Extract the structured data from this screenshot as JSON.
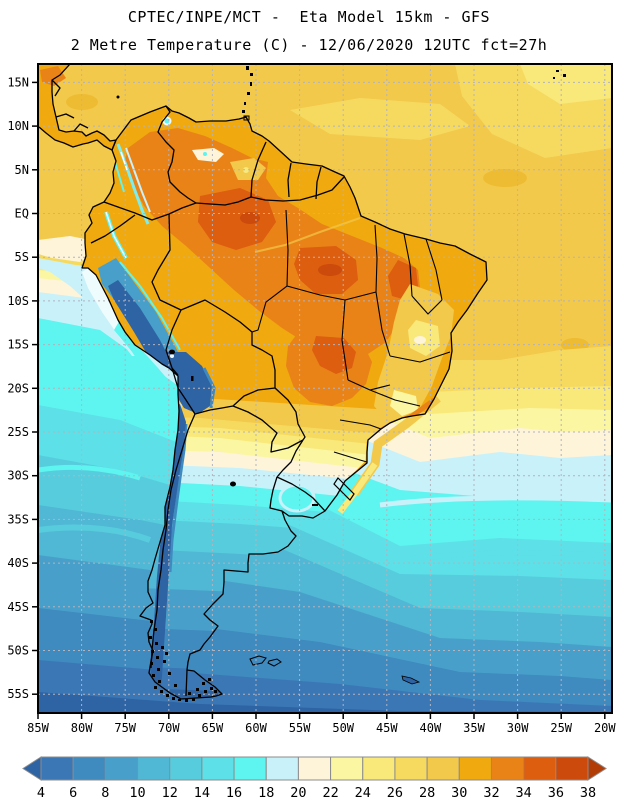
{
  "header": {
    "line1": "CPTEC/INPE/MCT -  Eta Model 15km - GFS",
    "line2": "2 Metre Temperature (C) - 12/06/2020 12UTC fct=27h"
  },
  "map": {
    "lat_tick_labels": [
      "15N",
      "10N",
      "5N",
      "EQ",
      "5S",
      "10S",
      "15S",
      "20S",
      "25S",
      "30S",
      "35S",
      "40S",
      "45S",
      "50S",
      "55S"
    ],
    "lon_tick_labels": [
      "85W",
      "80W",
      "75W",
      "70W",
      "65W",
      "60W",
      "55W",
      "50W",
      "45W",
      "40W",
      "35W",
      "30W",
      "25W",
      "20W"
    ]
  },
  "colorbar": {
    "tick_labels": [
      "4",
      "6",
      "8",
      "10",
      "12",
      "14",
      "16",
      "18",
      "20",
      "22",
      "24",
      "26",
      "28",
      "30",
      "32",
      "34",
      "36",
      "38"
    ],
    "cell_colors": [
      "#3b77b5",
      "#3f8abf",
      "#48a0ca",
      "#50b7d4",
      "#57ccdd",
      "#5de0e7",
      "#5ef4ef",
      "#c9f1fa",
      "#fdf4da",
      "#fbf6a2",
      "#f9e87a",
      "#f6da60",
      "#f2c94a",
      "#f0a90e",
      "#e98318",
      "#dc5e0e",
      "#cb4a0c"
    ],
    "below_min_color": "#2e63a4",
    "above_max_color": "#b23d07"
  },
  "chart_data": {
    "type": "heatmap",
    "title": "CPTEC/INPE/MCT -  Eta Model 15km - GFS",
    "subtitle": "2 Metre Temperature (C) - 12/06/2020 12UTC fct=27h",
    "variable": "2 Metre Temperature",
    "units": "C",
    "model": "Eta Model 15km - GFS",
    "run": "12/06/2020 12UTC",
    "forecast": "fct=27h",
    "x_tick_labels": [
      "85W",
      "80W",
      "75W",
      "70W",
      "65W",
      "60W",
      "55W",
      "50W",
      "45W",
      "40W",
      "35W",
      "30W",
      "25W",
      "20W"
    ],
    "y_tick_labels": [
      "15N",
      "10N",
      "5N",
      "EQ",
      "5S",
      "10S",
      "15S",
      "20S",
      "25S",
      "30S",
      "35S",
      "40S",
      "45S",
      "50S",
      "55S"
    ],
    "colorbar_values": [
      4,
      6,
      8,
      10,
      12,
      14,
      16,
      18,
      20,
      22,
      24,
      26,
      28,
      30,
      32,
      34,
      36,
      38
    ],
    "colorbar_colors": [
      "#2e63a4",
      "#3b77b5",
      "#3f8abf",
      "#48a0ca",
      "#50b7d4",
      "#57ccdd",
      "#5de0e7",
      "#5ef4ef",
      "#c9f1fa",
      "#fdf4da",
      "#fbf6a2",
      "#f9e87a",
      "#f6da60",
      "#f2c94a",
      "#f0a90e",
      "#e98318",
      "#dc5e0e",
      "#cb4a0c",
      "#b23d07"
    ],
    "legend_position": "bottom",
    "grid": true
  }
}
